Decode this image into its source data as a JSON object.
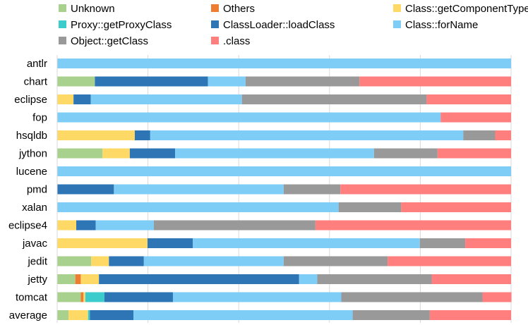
{
  "chart_data": {
    "type": "bar",
    "orientation": "horizontal",
    "stacked": true,
    "normalized": true,
    "title": "",
    "xlabel": "",
    "ylabel": "",
    "xlim": [
      0,
      100
    ],
    "grid": true,
    "legend_position": "top",
    "categories": [
      "antlr",
      "chart",
      "eclipse",
      "fop",
      "hsqldb",
      "jython",
      "lucene",
      "pmd",
      "xalan",
      "eclipse4",
      "javac",
      "jedit",
      "jetty",
      "tomcat",
      "average"
    ],
    "series": [
      {
        "name": "Unknown",
        "color": "#a9d18e",
        "values": [
          0,
          8.3,
          0,
          0,
          0,
          10,
          0,
          0,
          0,
          0,
          0,
          7.5,
          4,
          5.2,
          2.5
        ]
      },
      {
        "name": "Others",
        "color": "#ed7d31",
        "values": [
          0,
          0,
          0,
          0,
          0,
          0,
          0,
          0,
          0,
          0,
          0,
          0,
          1.2,
          0.6,
          0
        ]
      },
      {
        "name": "Class::getComponentType",
        "color": "#ffd966",
        "values": [
          0,
          0,
          3.6,
          0,
          17.1,
          6,
          0,
          0,
          0,
          4.2,
          19.9,
          3.9,
          4,
          0.4,
          4.3
        ]
      },
      {
        "name": "Proxy::getProxyClass",
        "color": "#3dcccc",
        "values": [
          0,
          0,
          0,
          0,
          0,
          0,
          0,
          0,
          0,
          0,
          0,
          0,
          0,
          4.2,
          0.4
        ]
      },
      {
        "name": "ClassLoader::loadClass",
        "color": "#2e75b6",
        "values": [
          0,
          24.9,
          3.8,
          0,
          3.4,
          10,
          0,
          12.5,
          0,
          4.3,
          10,
          7.7,
          44.1,
          15.1,
          9.6
        ]
      },
      {
        "name": "Class::forName",
        "color": "#7dcdf7",
        "values": [
          100,
          8.3,
          33.3,
          84.5,
          69,
          43.8,
          100,
          37.4,
          62,
          12.8,
          50,
          30.8,
          4,
          37.1,
          48.3
        ]
      },
      {
        "name": "Object::getClass",
        "color": "#999999",
        "values": [
          0,
          25.1,
          40.7,
          0,
          7,
          14,
          0,
          12.5,
          13.8,
          35.6,
          10,
          22.9,
          25.2,
          31.1,
          17
        ]
      },
      {
        "name": ".class",
        "color": "#ff7f7f",
        "values": [
          0,
          33.4,
          18.6,
          15.5,
          3.5,
          16.2,
          0,
          37.6,
          24.2,
          43.1,
          10.1,
          27.2,
          17.5,
          6.4,
          17.9
        ]
      }
    ]
  }
}
